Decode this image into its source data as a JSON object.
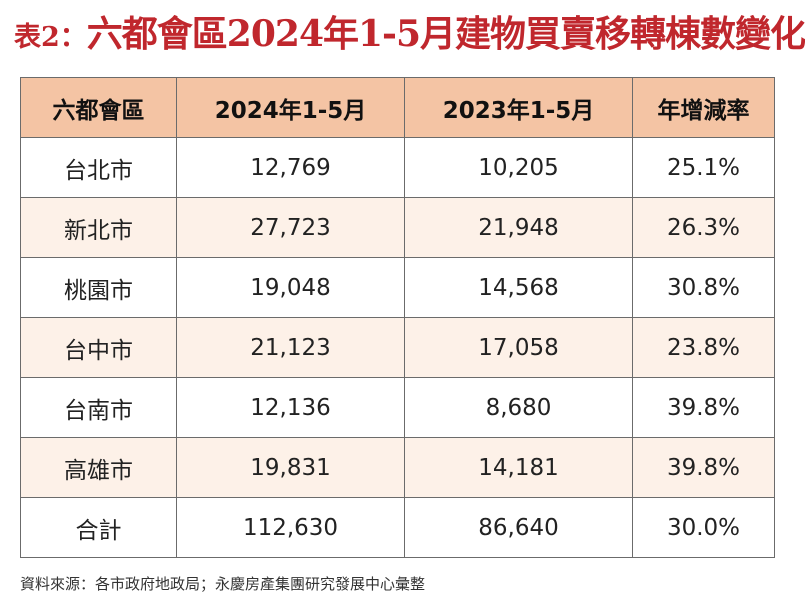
{
  "title": {
    "prefix": "表2：",
    "main": "六都會區2024年1-5月建物買賣移轉棟數變化"
  },
  "table": {
    "headers": [
      "六都會區",
      "2024年1-5月",
      "2023年1-5月",
      "年增減率"
    ],
    "rows": [
      {
        "city": "台北市",
        "y2024": "12,769",
        "y2023": "10,205",
        "rate": "25.1%"
      },
      {
        "city": "新北市",
        "y2024": "27,723",
        "y2023": "21,948",
        "rate": "26.3%"
      },
      {
        "city": "桃園市",
        "y2024": "19,048",
        "y2023": "14,568",
        "rate": "30.8%"
      },
      {
        "city": "台中市",
        "y2024": "21,123",
        "y2023": "17,058",
        "rate": "23.8%"
      },
      {
        "city": "台南市",
        "y2024": "12,136",
        "y2023": "8,680",
        "rate": "39.8%"
      },
      {
        "city": "高雄市",
        "y2024": "19,831",
        "y2023": "14,181",
        "rate": "39.8%"
      },
      {
        "city": "合計",
        "y2024": "112,630",
        "y2023": "86,640",
        "rate": "30.0%"
      }
    ]
  },
  "source": "資料來源：各市政府地政局；永慶房產集團研究發展中心彙整",
  "colors": {
    "title": "#c0272d",
    "header_bg": "#f4c4a4",
    "alt_row_bg": "#fdf1e8",
    "border": "#6b6b6b"
  }
}
